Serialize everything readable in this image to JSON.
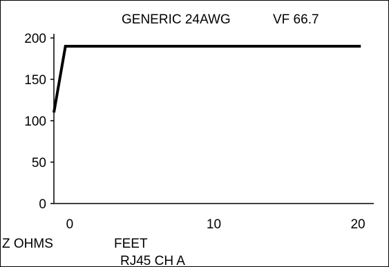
{
  "chart_data": {
    "type": "line",
    "title": "GENERIC 24AWG",
    "subtitle": "VF 66.7",
    "xlabel": "FEET",
    "ylabel": "Z OHMS",
    "footer": "RJ45 CH A",
    "xlim": [
      -1.1,
      21.1
    ],
    "ylim": [
      0,
      200
    ],
    "xticks": [
      "0",
      "10",
      "20"
    ],
    "yticks": [
      "0",
      "50",
      "100",
      "150",
      "200"
    ],
    "grid": false,
    "x": [
      -1.1,
      -0.3,
      20.2
    ],
    "values": [
      110,
      190,
      190
    ],
    "colors": {
      "line": "#000000",
      "axis": "#000000",
      "background": "#ffffff"
    }
  }
}
